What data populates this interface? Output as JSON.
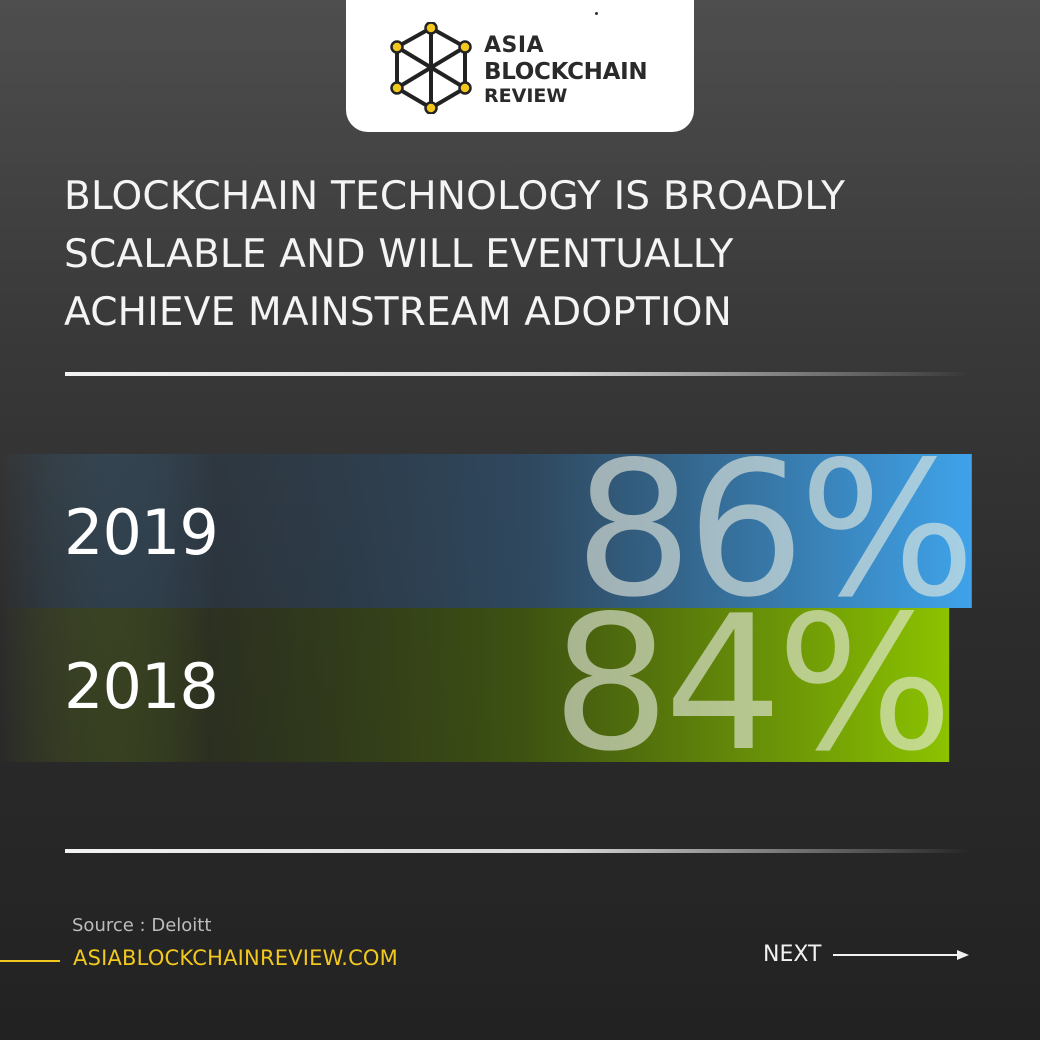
{
  "logo": {
    "line1": "ASIA",
    "line2": "BLOCKCHAIN",
    "line3": "REVIEW",
    "icon": "hexagon-network-icon"
  },
  "headline": {
    "line1": "BLOCKCHAIN TECHNOLOGY IS BROADLY",
    "line2": "SCALABLE AND WILL EVENTUALLY",
    "line3": "ACHIEVE MAINSTREAM ADOPTION"
  },
  "chart_data": {
    "type": "bar",
    "orientation": "horizontal",
    "categories": [
      "2019",
      "2018"
    ],
    "values": [
      86,
      84
    ],
    "value_labels": [
      "86%",
      "84%"
    ],
    "unit": "%",
    "xlim": [
      0,
      100
    ],
    "colors": [
      "#3fa3ea",
      "#8cc300"
    ],
    "grid": false
  },
  "footer": {
    "source": "Source : Deloitt",
    "website": "ASIABLOCKCHAINREVIEW.COM",
    "next_label": "NEXT"
  },
  "colors": {
    "accent": "#f2c81f",
    "bar_2019": "#3fa3ea",
    "bar_2018": "#8cc300"
  }
}
